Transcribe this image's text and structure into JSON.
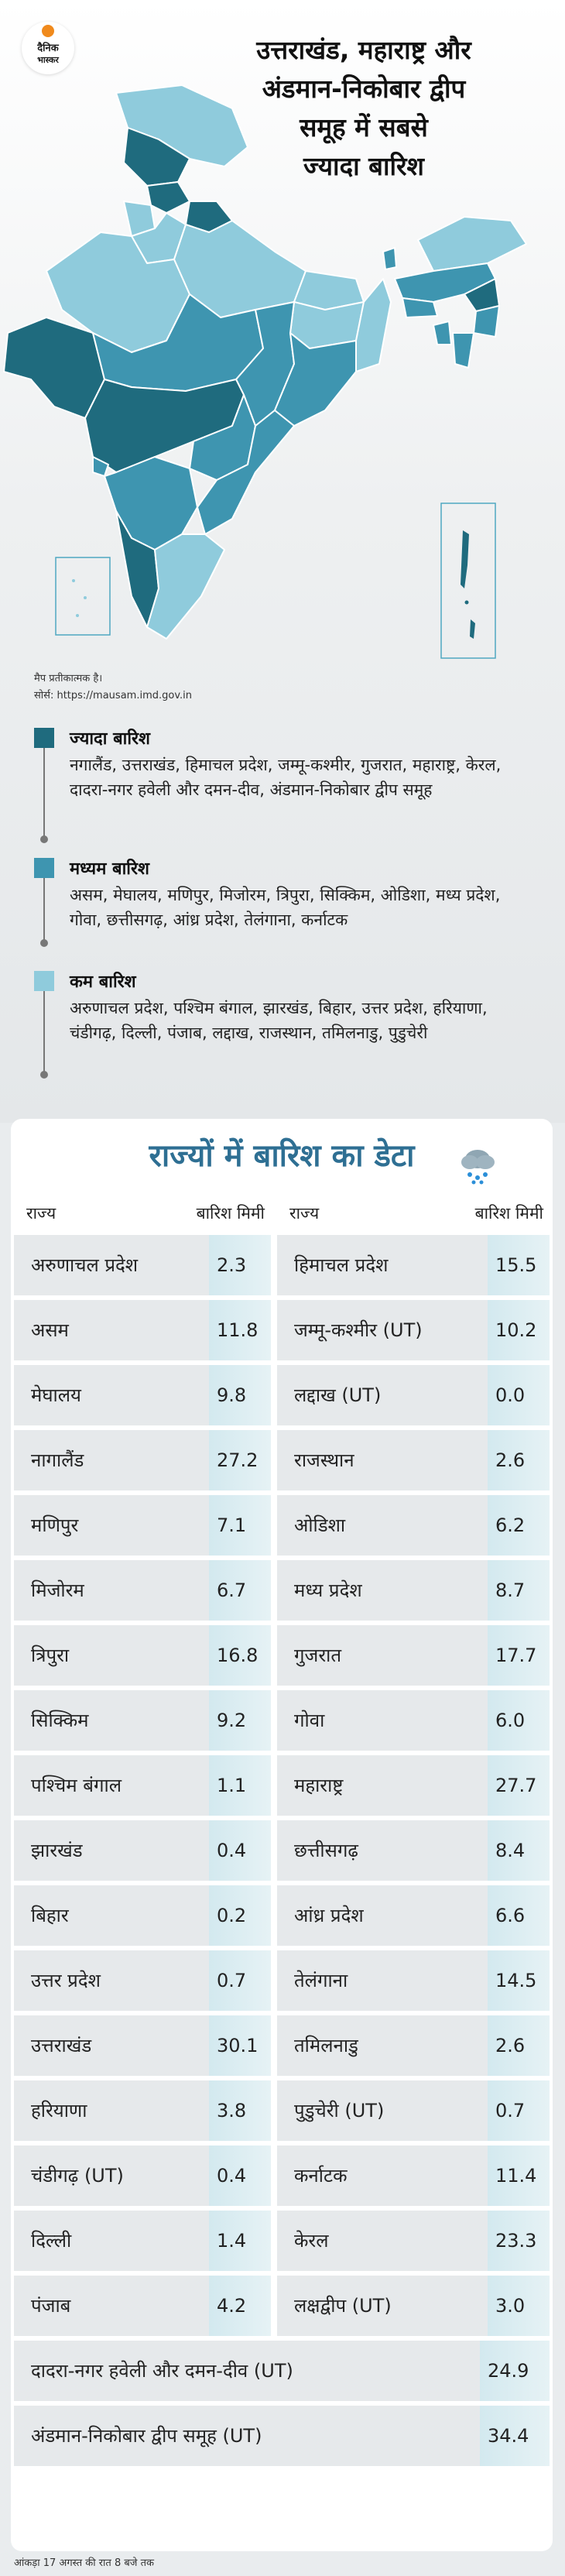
{
  "brand": {
    "line1": "दैनिक",
    "line2": "भास्कर"
  },
  "headline": [
    "उत्तराखंड, महाराष्ट्र और",
    "अंडमान-निकोबार द्वीप",
    "समूह में सबसे",
    "ज्यादा बारिश"
  ],
  "map_note": "मैप प्रतीकात्मक है।",
  "source": "सोर्स: https://mausam.imd.gov.in",
  "colors": {
    "high": "#1f6b7e",
    "medium": "#3e95b0",
    "low": "#8fcbdc",
    "title": "#2e6f93"
  },
  "legend": [
    {
      "title": "ज्यादा बारिश",
      "text": "नगालैंड, उत्तराखंड, हिमाचल प्रदेश, जम्मू-कश्मीर, गुजरात, महाराष्ट्र, केरल, दादरा-नगर हवेली और दमन-दीव, अंडमान-निकोबार द्वीप समूह"
    },
    {
      "title": "मध्यम बारिश",
      "text": "असम, मेघालय, मणिपुर, मिजोरम, त्रिपुरा, सिक्किम, ओडिशा, मध्य प्रदेश, गोवा, छत्तीसगढ़, आंध्र प्रदेश, तेलंगाना, कर्नाटक"
    },
    {
      "title": "कम बारिश",
      "text": "अरुणाचल प्रदेश, पश्चिम बंगाल, झारखंड, बिहार, उत्तर प्रदेश, हरियाणा, चंडीगढ़, दिल्ली, पंजाब, लद्दाख, राजस्थान, तमिलनाडु, पुडुचेरी"
    }
  ],
  "table": {
    "title": "राज्यों में बारिश का डेटा",
    "headers": {
      "state": "राज्य",
      "rain": "बारिश मिमी"
    },
    "left": [
      {
        "name": "अरुणाचल प्रदेश",
        "value": "2.3"
      },
      {
        "name": "असम",
        "value": "11.8"
      },
      {
        "name": "मेघालय",
        "value": "9.8"
      },
      {
        "name": "नागालैंड",
        "value": "27.2"
      },
      {
        "name": "मणिपुर",
        "value": "7.1"
      },
      {
        "name": "मिजोरम",
        "value": "6.7"
      },
      {
        "name": "त्रिपुरा",
        "value": "16.8"
      },
      {
        "name": "सिक्किम",
        "value": "9.2"
      },
      {
        "name": "पश्चिम बंगाल",
        "value": "1.1"
      },
      {
        "name": "झारखंड",
        "value": "0.4"
      },
      {
        "name": "बिहार",
        "value": "0.2"
      },
      {
        "name": "उत्तर प्रदेश",
        "value": "0.7"
      },
      {
        "name": "उत्तराखंड",
        "value": "30.1"
      },
      {
        "name": "हरियाणा",
        "value": "3.8"
      },
      {
        "name": "चंडीगढ़ (UT)",
        "value": "0.4"
      },
      {
        "name": "दिल्ली",
        "value": "1.4"
      },
      {
        "name": "पंजाब",
        "value": "4.2"
      }
    ],
    "right": [
      {
        "name": "हिमाचल प्रदेश",
        "value": "15.5"
      },
      {
        "name": "जम्मू-कश्मीर (UT)",
        "value": "10.2"
      },
      {
        "name": "लद्दाख (UT)",
        "value": "0.0"
      },
      {
        "name": "राजस्थान",
        "value": "2.6"
      },
      {
        "name": "ओडिशा",
        "value": "6.2"
      },
      {
        "name": "मध्य प्रदेश",
        "value": "8.7"
      },
      {
        "name": "गुजरात",
        "value": "17.7"
      },
      {
        "name": "गोवा",
        "value": "6.0"
      },
      {
        "name": "महाराष्ट्र",
        "value": "27.7"
      },
      {
        "name": "छत्तीसगढ़",
        "value": "8.4"
      },
      {
        "name": "आंध्र प्रदेश",
        "value": "6.6"
      },
      {
        "name": "तेलंगाना",
        "value": "14.5"
      },
      {
        "name": "तमिलनाडु",
        "value": "2.6"
      },
      {
        "name": "पुडुचेरी (UT)",
        "value": "0.7"
      },
      {
        "name": "कर्नाटक",
        "value": "11.4"
      },
      {
        "name": "केरल",
        "value": "23.3"
      },
      {
        "name": "लक्षद्वीप (UT)",
        "value": "3.0"
      }
    ],
    "full": [
      {
        "name": "दादरा-नगर हवेली और दमन-दीव (UT)",
        "value": "24.9"
      },
      {
        "name": "अंडमान-निकोबार द्वीप समूह (UT)",
        "value": "34.4"
      }
    ]
  },
  "as_of": "आंकड़ा 17 अगस्त की रात 8 बजे तक"
}
